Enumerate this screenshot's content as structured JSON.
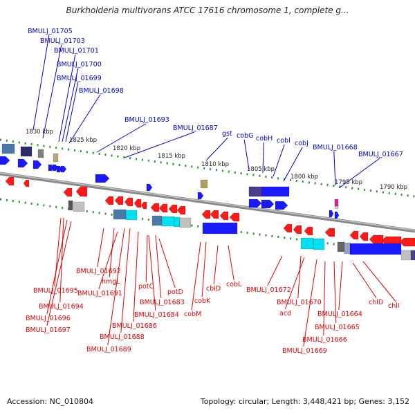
{
  "header": {
    "title": "Burkholderia multivorans ATCC 17616 chromosome 1, complete g..."
  },
  "footer": {
    "accession": "Accession: NC_010804",
    "summary": "Topology: circular; Length: 3,448,421 bp; Genes: 3,152"
  },
  "colors": {
    "top_label": "#0000cc",
    "bottom_label": "#dd0000",
    "backbone": "#888888",
    "tick_dots": "#2e8b2e",
    "forward_gene": "#1a1aff",
    "reverse_gene": "#ff1a1a"
  },
  "ruler": [
    "1830 kbp",
    "1825 kbp",
    "1820 kbp",
    "1815 kbp",
    "1810 kbp",
    "1805 kbp",
    "1800 kbp",
    "1795 kbp",
    "1790 kbp"
  ],
  "top_labels": [
    "BMULJ_01705",
    "BMULJ_01703",
    "BMULJ_01701",
    "BMULJ_01700",
    "BMULJ_01699",
    "BMULJ_01698",
    "BMULJ_01693",
    "BMULJ_01687",
    "gst",
    "cobG",
    "cobH",
    "cobI",
    "cobJ",
    "BMULJ_01668",
    "BMULJ_01667"
  ],
  "bottom_labels": [
    "BMULJ_01692",
    "hmgL",
    "BMULJ_01691",
    "potC",
    "potD",
    "BMULJ_01683",
    "BMULJ_01684",
    "BMULJ_01686",
    "BMULJ_01688",
    "BMULJ_01689",
    "BMULJ_01695",
    "BMULJ_01694",
    "BMULJ_01696",
    "BMULJ_01697",
    "cbiD",
    "cobL",
    "cobK",
    "cobM",
    "BMULJ_01672",
    "BMULJ_01670",
    "acd",
    "BMULJ_01669",
    "BMULJ_01666",
    "BMULJ_01665",
    "BMULJ_01664",
    "chlD",
    "chlI"
  ]
}
